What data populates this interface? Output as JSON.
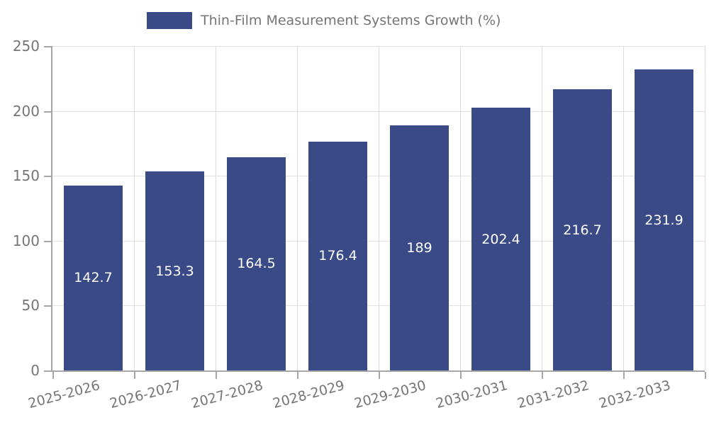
{
  "legend": {
    "label": "Thin-Film Measurement Systems Growth (%)"
  },
  "colors": {
    "bar": "#394a87",
    "axis": "#a6a6a6",
    "grid_h": "#e2e2e2",
    "grid_v": "#dcdcdc",
    "tick_text": "#757575",
    "value_label": "#ffffff",
    "background": "#ffffff"
  },
  "chart_data": {
    "type": "bar",
    "title": "Thin-Film Measurement Systems Growth (%)",
    "legend_position": "top-center",
    "categories": [
      "2025-2026",
      "2026-2027",
      "2027-2028",
      "2028-2029",
      "2029-2030",
      "2030-2031",
      "2031-2032",
      "2032-2033"
    ],
    "values": [
      142.7,
      153.3,
      164.5,
      176.4,
      189,
      202.4,
      216.7,
      231.9
    ],
    "value_labels": [
      "142.7",
      "153.3",
      "164.5",
      "176.4",
      "189",
      "202.4",
      "216.7",
      "231.9"
    ],
    "xlabel": "",
    "ylabel": "",
    "ylim": [
      0,
      250
    ],
    "yticks": [
      0,
      50,
      100,
      150,
      200,
      250
    ],
    "grid": true,
    "x_tick_rotation_deg": -15,
    "value_label_position": "inside-center"
  }
}
